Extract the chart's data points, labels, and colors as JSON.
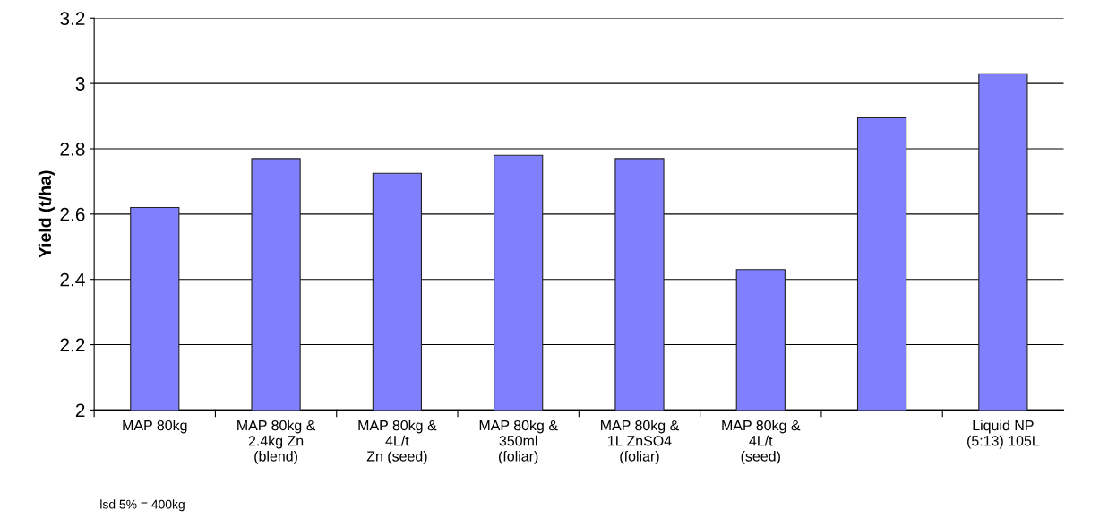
{
  "chart_data": {
    "type": "bar",
    "ylabel": "Yield (t/ha)",
    "categories": [
      "MAP 80kg",
      "MAP 80kg &\n2.4kg Zn\n(blend)",
      "MAP 80kg &\n4L/t\nZn (seed)",
      "MAP 80kg &\n350ml\n(foliar)",
      "MAP 80kg &\n1L ZnSO4\n(foliar)",
      "MAP 80kg &\n4L/t\n(seed)",
      null,
      "Liquid NP\n(5:13) 105L"
    ],
    "values": [
      2.62,
      2.77,
      2.725,
      2.78,
      2.77,
      2.43,
      2.895,
      3.03
    ],
    "color": "#8080ff",
    "ylim": [
      2,
      3.2
    ],
    "yticks": [
      2,
      2.2,
      2.4,
      2.6,
      2.8,
      3,
      3.2
    ],
    "grid": "y",
    "annotations": [
      "lsd 5% = 400kg"
    ]
  }
}
